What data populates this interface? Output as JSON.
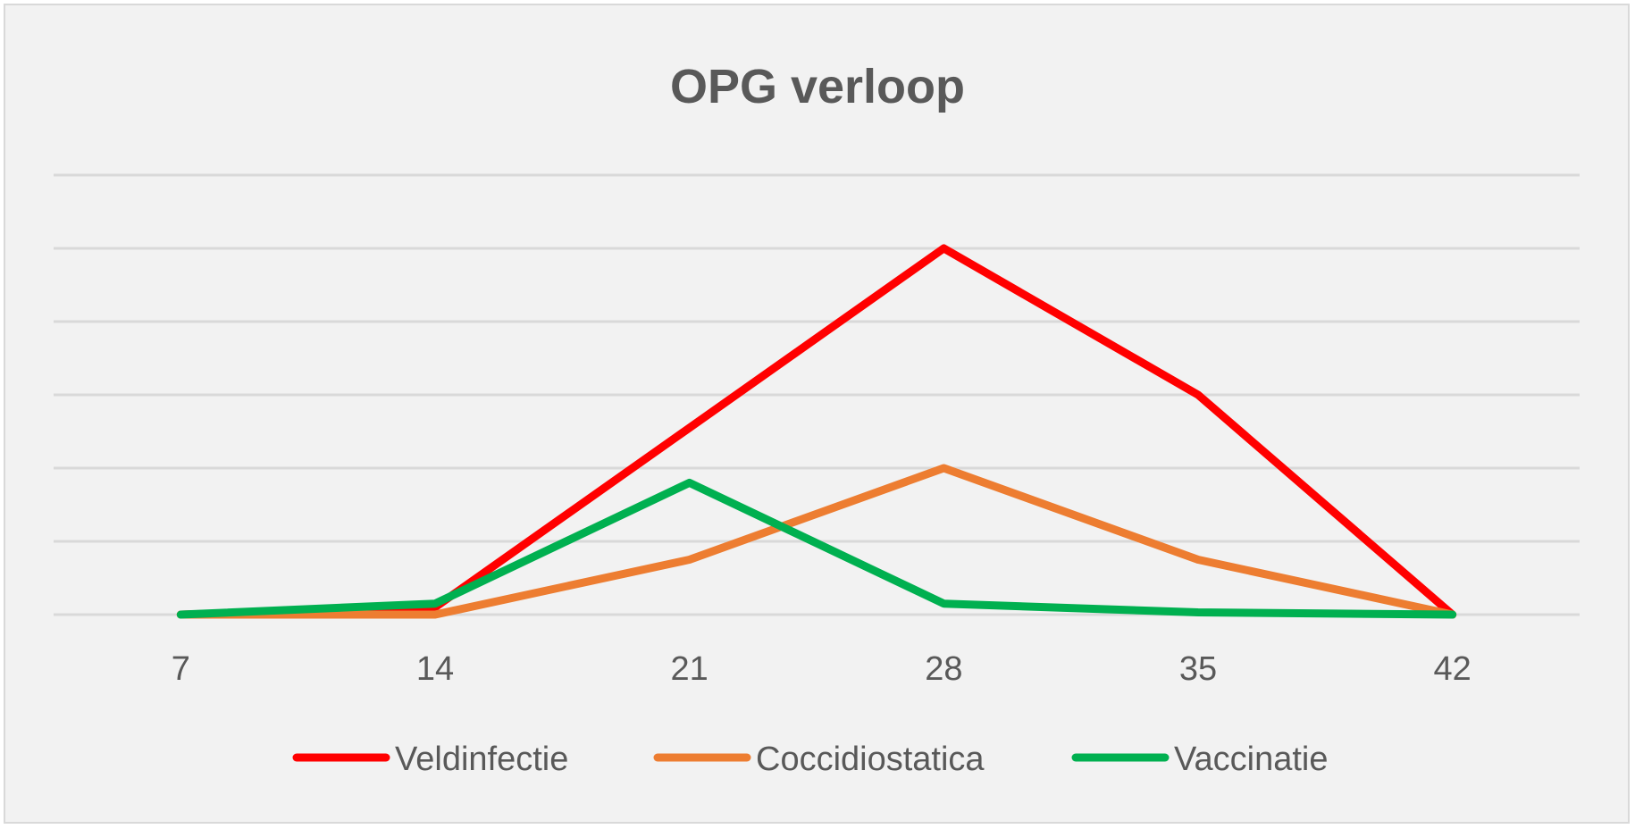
{
  "chart_data": {
    "type": "line",
    "title": "OPG verloop",
    "xlabel": "",
    "ylabel": "",
    "categories": [
      "7",
      "14",
      "21",
      "28",
      "35",
      "42"
    ],
    "ylim": [
      0,
      6
    ],
    "y_gridlines": 7,
    "y_tick_labels_shown": false,
    "grid": true,
    "legend_position": "bottom",
    "series": [
      {
        "name": "Veldinfectie",
        "color": "#ff0000",
        "values": [
          0,
          0.1,
          2.55,
          5,
          3,
          0
        ]
      },
      {
        "name": "Coccidiostatica",
        "color": "#ed7d31",
        "values": [
          0,
          0,
          0.75,
          2,
          0.75,
          0
        ]
      },
      {
        "name": "Vaccinatie",
        "color": "#00b050",
        "values": [
          0,
          0.15,
          1.8,
          0.15,
          0.03,
          0
        ]
      }
    ]
  }
}
